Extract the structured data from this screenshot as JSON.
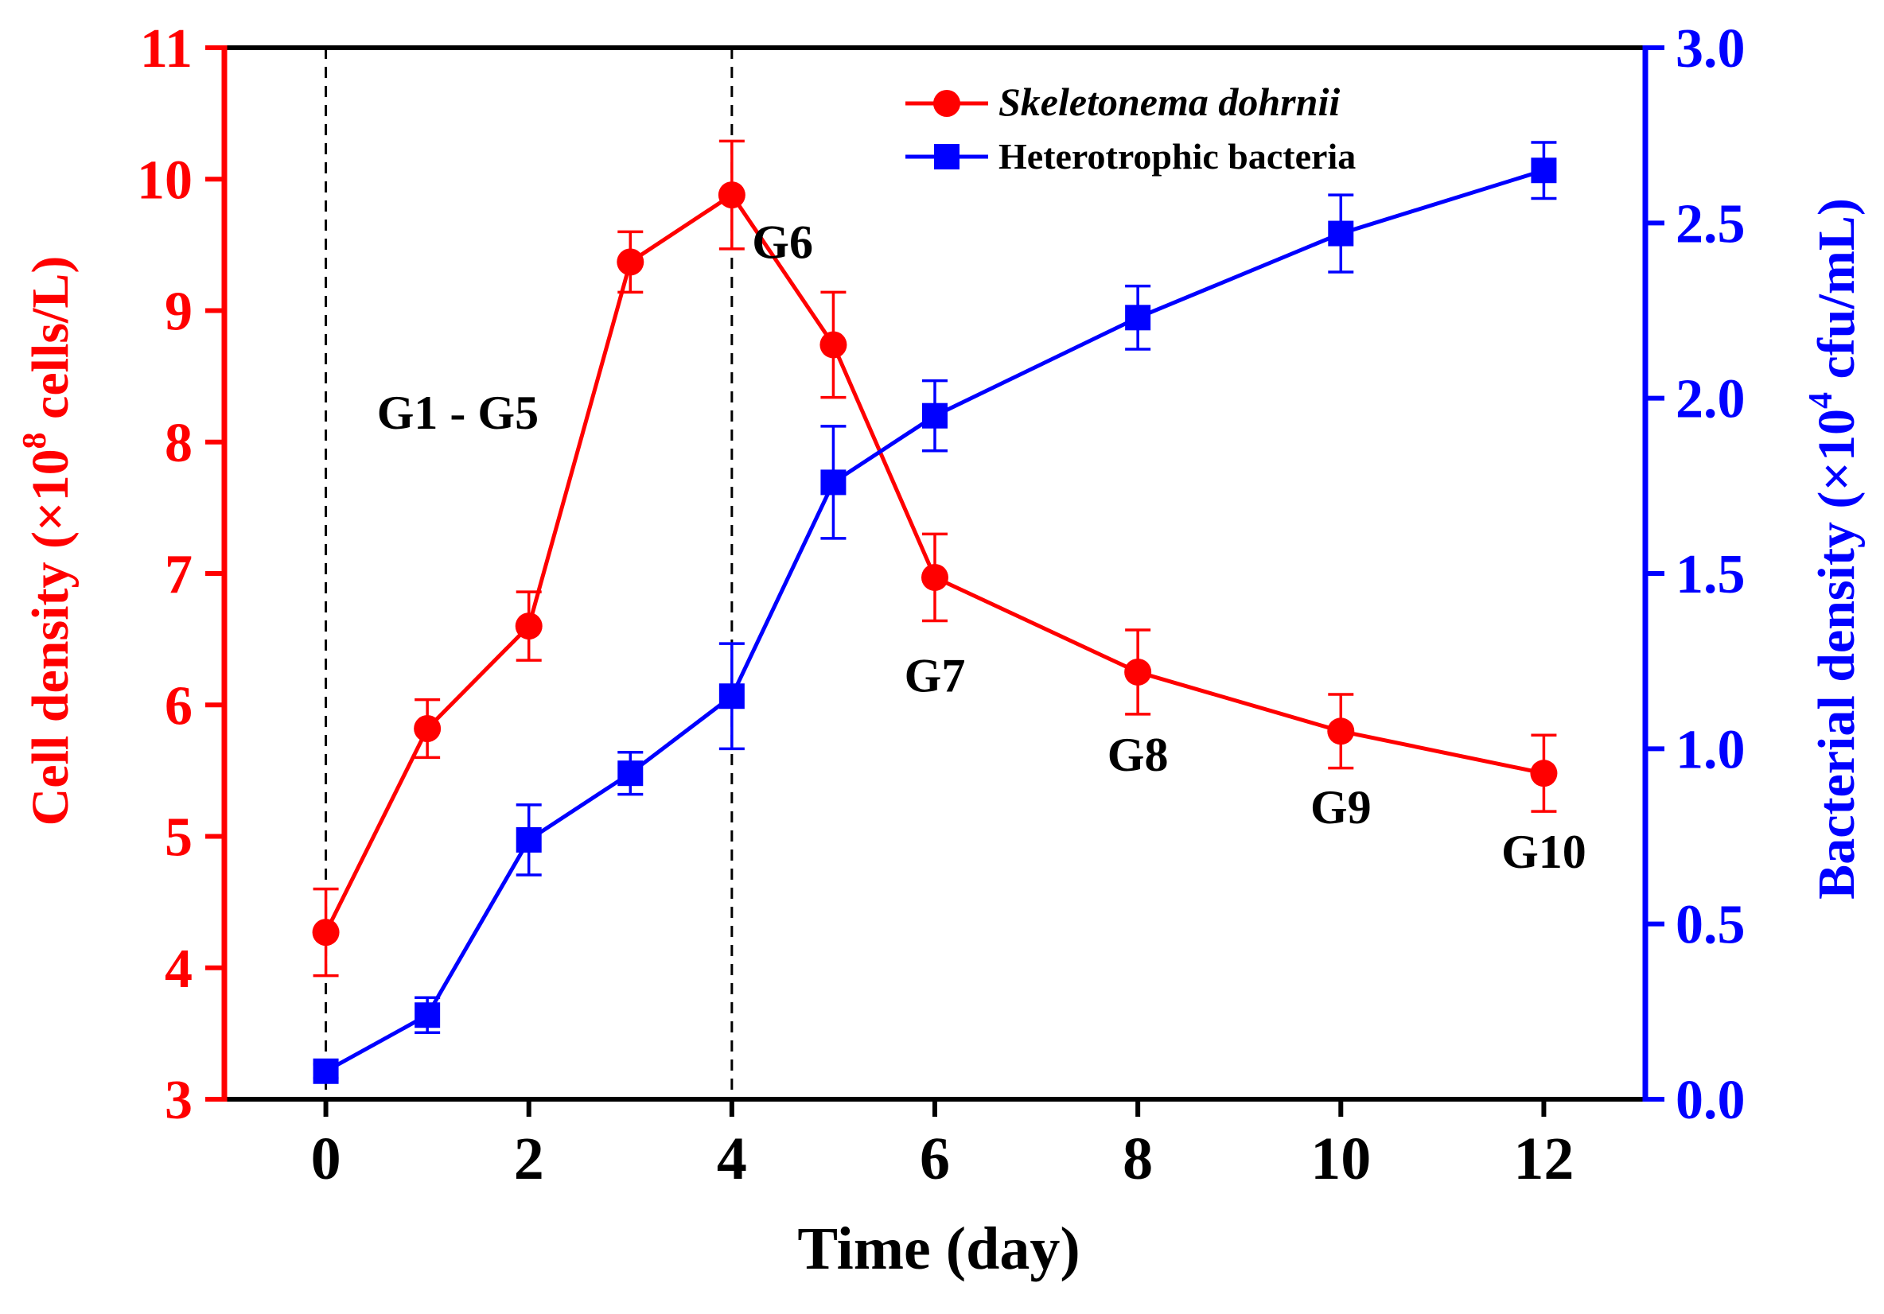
{
  "chart_data": {
    "type": "line",
    "xlabel": "Time (day)",
    "x_ticks": [
      0,
      2,
      4,
      6,
      8,
      10,
      12
    ],
    "xlim": [
      -1,
      13
    ],
    "y_left": {
      "label_prefix": "Cell density (×10",
      "label_sup": "8",
      "label_suffix": " cells/L)",
      "ylim": [
        3,
        11
      ],
      "ticks": [
        3,
        4,
        5,
        6,
        7,
        8,
        9,
        10,
        11
      ],
      "tick_labels": [
        "3",
        "4",
        "5",
        "6",
        "7",
        "8",
        "9",
        "10",
        "11"
      ],
      "color": "#ff0000"
    },
    "y_right": {
      "label_prefix": "Bacterial density (×10",
      "label_sup": "4",
      "label_suffix": " cfu/mL)",
      "ylim": [
        0,
        3
      ],
      "ticks": [
        0,
        0.5,
        1.0,
        1.5,
        2.0,
        2.5,
        3.0
      ],
      "tick_labels": [
        "0.0",
        "0.5",
        "1.0",
        "1.5",
        "2.0",
        "2.5",
        "3.0"
      ],
      "color": "#0000ff"
    },
    "series": [
      {
        "name": "Skeletonema dohrnii",
        "axis": "left",
        "color": "#ff0000",
        "marker": "circle",
        "x": [
          0,
          1,
          2,
          3,
          4,
          5,
          6,
          8,
          10,
          12
        ],
        "y": [
          4.27,
          5.82,
          6.6,
          9.37,
          9.88,
          8.74,
          6.97,
          6.25,
          5.8,
          5.48
        ],
        "err": [
          0.33,
          0.22,
          0.26,
          0.23,
          0.41,
          0.4,
          0.33,
          0.32,
          0.28,
          0.29
        ]
      },
      {
        "name": "Heterotrophic bacteria",
        "axis": "right",
        "color": "#0000ff",
        "marker": "square",
        "x": [
          0,
          1,
          2,
          3,
          4,
          5,
          6,
          8,
          10,
          12
        ],
        "y": [
          0.08,
          0.24,
          0.74,
          0.93,
          1.15,
          1.76,
          1.95,
          2.23,
          2.47,
          2.65
        ],
        "err": [
          0.02,
          0.05,
          0.1,
          0.06,
          0.15,
          0.16,
          0.1,
          0.09,
          0.11,
          0.08
        ]
      }
    ],
    "vlines": [
      0,
      4
    ],
    "annotations": [
      {
        "text": "G1 - G5",
        "x": 1.3,
        "y": 8.1
      },
      {
        "text": "G6",
        "x": 4.5,
        "y": 9.4
      },
      {
        "text": "G7",
        "x": 6.0,
        "y": 6.1
      },
      {
        "text": "G8",
        "x": 8.0,
        "y": 5.5
      },
      {
        "text": "G9",
        "x": 10.0,
        "y": 5.1
      },
      {
        "text": "G10",
        "x": 12.0,
        "y": 4.76
      }
    ],
    "legend_placement": "top-center"
  }
}
